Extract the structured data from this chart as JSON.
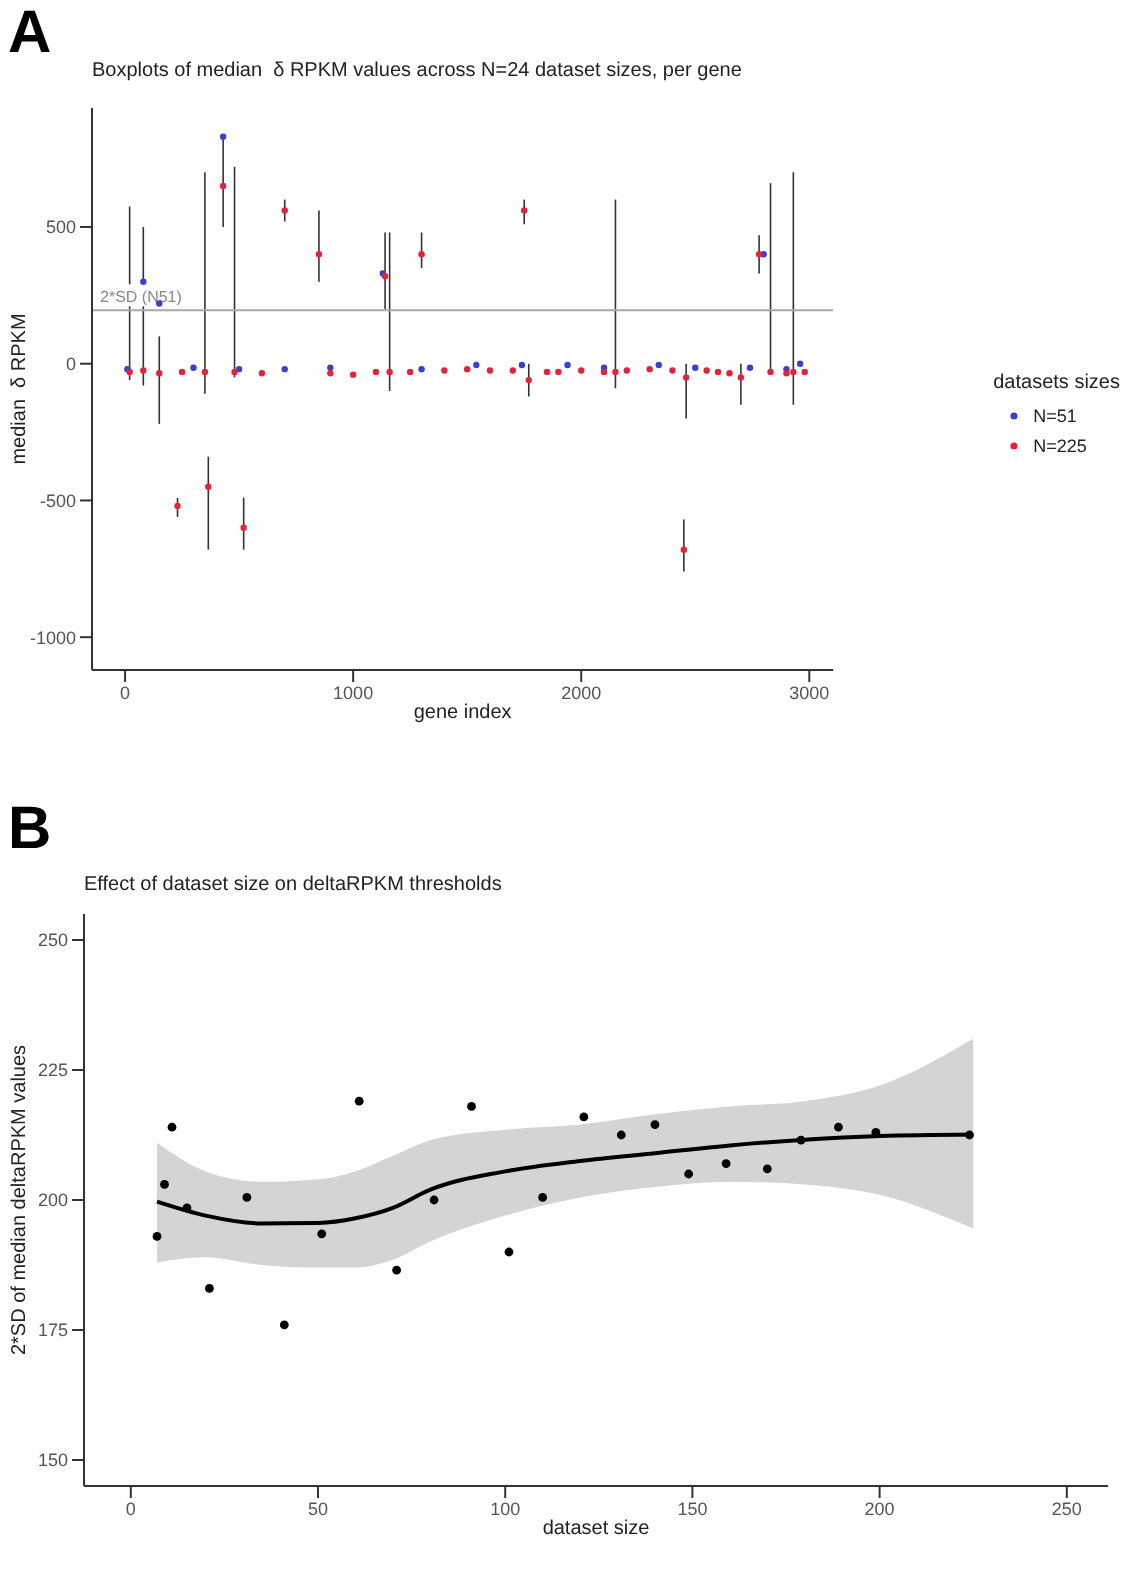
{
  "chart_data": [
    {
      "type": "scatter",
      "title": "Boxplots of median  δ RPKM values across N=24 dataset sizes, per gene",
      "xlabel": "gene index",
      "ylabel": "median  δ RPKM",
      "legend_title": "datasets sizes",
      "legend": "right",
      "marker": "circle",
      "annotations": [
        "A"
      ],
      "xlim": [
        -145,
        3105
      ],
      "xticks": [
        0,
        1000,
        2000,
        3000
      ],
      "ylim": [
        -1120,
        935
      ],
      "yticks": [
        -1000,
        -500,
        0,
        500
      ],
      "ref_lines": [
        {
          "axis": "y",
          "value": 195,
          "label": "2*SD (N51)",
          "color": "#a8a8a8"
        }
      ],
      "series": [
        {
          "name": "N=51",
          "color": "#3b3fce",
          "x": [
            10,
            80,
            150,
            300,
            430,
            500,
            700,
            900,
            1130,
            1300,
            1540,
            1740,
            1940,
            2100,
            2340,
            2500,
            2740,
            2800,
            2900,
            2960
          ],
          "values": [
            -20,
            300,
            220,
            -15,
            830,
            -20,
            -20,
            -15,
            330,
            -20,
            -5,
            -5,
            -5,
            -15,
            -5,
            -15,
            -15,
            400,
            -20,
            0
          ]
        },
        {
          "name": "N=225",
          "color": "#e8203a",
          "x": [
            20,
            80,
            150,
            230,
            250,
            350,
            365,
            430,
            480,
            520,
            600,
            700,
            850,
            900,
            1000,
            1100,
            1140,
            1160,
            1250,
            1300,
            1400,
            1500,
            1600,
            1700,
            1750,
            1770,
            1850,
            1900,
            2000,
            2100,
            2150,
            2200,
            2300,
            2400,
            2450,
            2460,
            2550,
            2600,
            2650,
            2700,
            2780,
            2830,
            2900,
            2930,
            2980
          ],
          "values": [
            -30,
            -25,
            -35,
            -520,
            -30,
            -30,
            -450,
            650,
            -30,
            -600,
            -35,
            560,
            400,
            -35,
            -40,
            -30,
            320,
            -30,
            -30,
            400,
            -25,
            -20,
            -25,
            -25,
            560,
            -60,
            -30,
            -30,
            -25,
            -30,
            -30,
            -25,
            -20,
            -25,
            -680,
            -50,
            -25,
            -30,
            -35,
            -50,
            400,
            -30,
            -35,
            -30,
            -30
          ],
          "errors": [
            [
              -60,
              575
            ],
            [
              -80,
              500
            ],
            [
              -220,
              100
            ],
            [
              -560,
              -490
            ],
            null,
            [
              -110,
              700
            ],
            [
              -680,
              -340
            ],
            [
              500,
              840
            ],
            [
              -50,
              720
            ],
            [
              -680,
              -490
            ],
            null,
            [
              520,
              600
            ],
            [
              300,
              560
            ],
            null,
            null,
            null,
            [
              200,
              480
            ],
            [
              -100,
              480
            ],
            null,
            [
              350,
              480
            ],
            null,
            null,
            null,
            null,
            [
              510,
              600
            ],
            [
              -120,
              0
            ],
            null,
            null,
            null,
            null,
            [
              -90,
              600
            ],
            null,
            null,
            null,
            [
              -760,
              -570
            ],
            [
              -200,
              0
            ],
            null,
            null,
            null,
            [
              -150,
              0
            ],
            [
              330,
              470
            ],
            [
              -40,
              660
            ],
            null,
            [
              -150,
              700
            ],
            null
          ]
        }
      ]
    },
    {
      "type": "scatter",
      "title": "Effect of dataset size on deltaRPKM thresholds",
      "xlabel": "dataset size",
      "ylabel": "2*SD of median deltaRPKM values",
      "annotations": [
        "B"
      ],
      "xlim": [
        -12.5,
        261
      ],
      "xticks": [
        0,
        50,
        100,
        150,
        200,
        250
      ],
      "ylim": [
        145,
        255
      ],
      "yticks": [
        150,
        175,
        200,
        225,
        250
      ],
      "series": [
        {
          "type": "scatter",
          "marker": "circle",
          "color": "#000000",
          "x": [
            7,
            9,
            11,
            15,
            21,
            31,
            41,
            51,
            61,
            71,
            81,
            91,
            101,
            110,
            121,
            131,
            140,
            149,
            159,
            170,
            179,
            189,
            199,
            224
          ],
          "values": [
            193,
            203,
            214,
            198.5,
            183,
            200.5,
            176,
            193.5,
            219,
            186.5,
            200,
            218,
            190,
            200.5,
            216,
            212.5,
            214.5,
            205,
            207,
            206,
            211.5,
            214,
            213,
            212.5
          ]
        },
        {
          "type": "line",
          "color": "#000000",
          "x": [
            7,
            20,
            35,
            50,
            60,
            70,
            80,
            100,
            120,
            140,
            160,
            180,
            200,
            225
          ],
          "values": [
            199.7,
            197,
            195.5,
            195.6,
            196.5,
            198.5,
            202,
            205.5,
            207.5,
            209,
            210.5,
            211.6,
            212.3,
            212.6
          ],
          "lower": [
            188,
            189,
            187.5,
            187,
            187,
            188.5,
            192,
            197,
            200.5,
            202.5,
            203.5,
            203,
            201,
            194.5
          ],
          "upper": [
            211,
            205.5,
            203.5,
            204,
            205.5,
            208.5,
            211.5,
            213.5,
            214.5,
            216.5,
            218,
            219,
            222,
            231
          ]
        }
      ]
    }
  ]
}
